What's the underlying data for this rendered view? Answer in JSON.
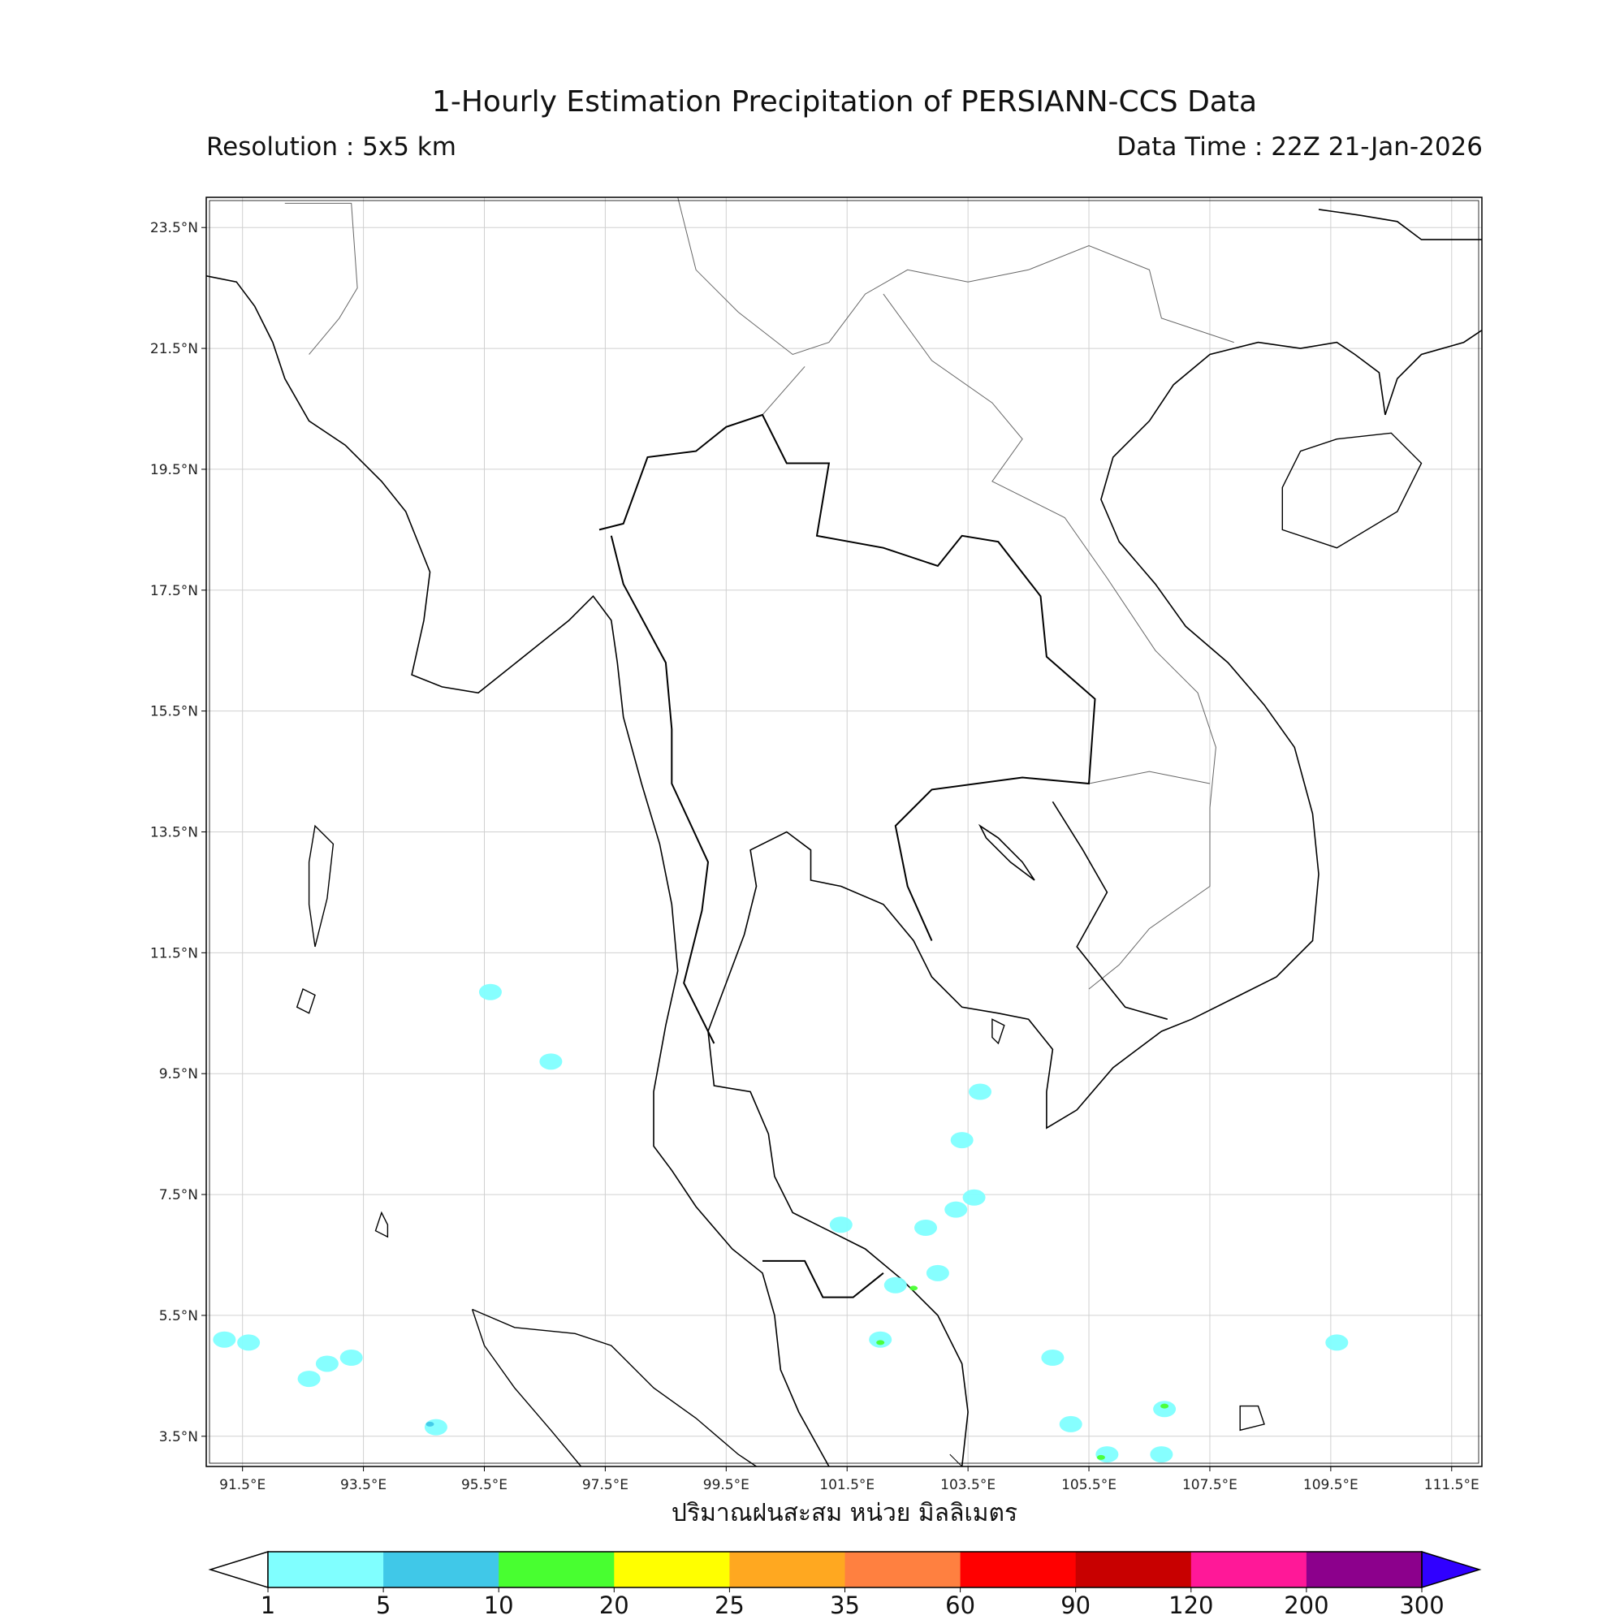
{
  "title": "1-Hourly Estimation Precipitation of PERSIANN-CCS Data",
  "resolution": "Resolution : 5x5 km",
  "data_time": "Data Time : 22Z 21-Jan-2026",
  "xlabel": "ปริมาณฝนสะสม หน่วย มิลลิเมตร",
  "map": {
    "lon_range": [
      90.9,
      112.0
    ],
    "lat_range": [
      3.0,
      24.0
    ],
    "lon_ticks": [
      "91.5°E",
      "93.5°E",
      "95.5°E",
      "97.5°E",
      "99.5°E",
      "101.5°E",
      "103.5°E",
      "105.5°E",
      "107.5°E",
      "109.5°E",
      "111.5°E"
    ],
    "lon_tick_values": [
      91.5,
      93.5,
      95.5,
      97.5,
      99.5,
      101.5,
      103.5,
      105.5,
      107.5,
      109.5,
      111.5
    ],
    "lat_ticks": [
      "23.5°N",
      "21.5°N",
      "19.5°N",
      "17.5°N",
      "15.5°N",
      "13.5°N",
      "11.5°N",
      "9.5°N",
      "7.5°N",
      "5.5°N",
      "3.5°N"
    ],
    "lat_tick_values": [
      23.5,
      21.5,
      19.5,
      17.5,
      15.5,
      13.5,
      11.5,
      9.5,
      7.5,
      5.5,
      3.5
    ],
    "grid": true
  },
  "precip_cells": [
    {
      "lon": 91.6,
      "lat": 5.05,
      "class": 0
    },
    {
      "lon": 91.2,
      "lat": 5.1,
      "class": 0
    },
    {
      "lon": 92.9,
      "lat": 4.7,
      "class": 0
    },
    {
      "lon": 92.6,
      "lat": 4.45,
      "class": 0
    },
    {
      "lon": 93.3,
      "lat": 4.8,
      "class": 0
    },
    {
      "lon": 94.7,
      "lat": 3.65,
      "class": 0
    },
    {
      "lon": 94.6,
      "lat": 3.7,
      "class": 1
    },
    {
      "lon": 102.05,
      "lat": 5.1,
      "class": 0
    },
    {
      "lon": 102.05,
      "lat": 5.05,
      "class": 2
    },
    {
      "lon": 102.3,
      "lat": 6.0,
      "class": 0
    },
    {
      "lon": 102.6,
      "lat": 5.95,
      "class": 2
    },
    {
      "lon": 103.3,
      "lat": 7.25,
      "class": 0
    },
    {
      "lon": 103.6,
      "lat": 7.45,
      "class": 0
    },
    {
      "lon": 102.8,
      "lat": 6.95,
      "class": 0
    },
    {
      "lon": 101.4,
      "lat": 7.0,
      "class": 0
    },
    {
      "lon": 103.4,
      "lat": 8.4,
      "class": 0
    },
    {
      "lon": 103.7,
      "lat": 9.2,
      "class": 0
    },
    {
      "lon": 105.8,
      "lat": 3.2,
      "class": 0
    },
    {
      "lon": 105.7,
      "lat": 3.15,
      "class": 2
    },
    {
      "lon": 106.75,
      "lat": 3.95,
      "class": 0
    },
    {
      "lon": 106.75,
      "lat": 4.0,
      "class": 2
    },
    {
      "lon": 106.7,
      "lat": 3.2,
      "class": 0
    },
    {
      "lon": 105.2,
      "lat": 3.7,
      "class": 0
    },
    {
      "lon": 104.9,
      "lat": 4.8,
      "class": 0
    },
    {
      "lon": 109.6,
      "lat": 5.05,
      "class": 0
    },
    {
      "lon": 95.6,
      "lat": 10.85,
      "class": 0
    },
    {
      "lon": 96.6,
      "lat": 9.7,
      "class": 0
    },
    {
      "lon": 103.0,
      "lat": 6.2,
      "class": 0
    }
  ],
  "colorbar": {
    "levels": [
      "1",
      "5",
      "10",
      "20",
      "25",
      "35",
      "60",
      "90",
      "120",
      "200",
      "300"
    ],
    "colors": [
      "#80ffff",
      "#40c8e8",
      "#48ff30",
      "#ffff00",
      "#ffa820",
      "#ff8040",
      "#ff0000",
      "#c80000",
      "#ff1898",
      "#8c008c"
    ],
    "under_color": "#ffffff",
    "over_color": "#3000ff",
    "extend": "both"
  }
}
